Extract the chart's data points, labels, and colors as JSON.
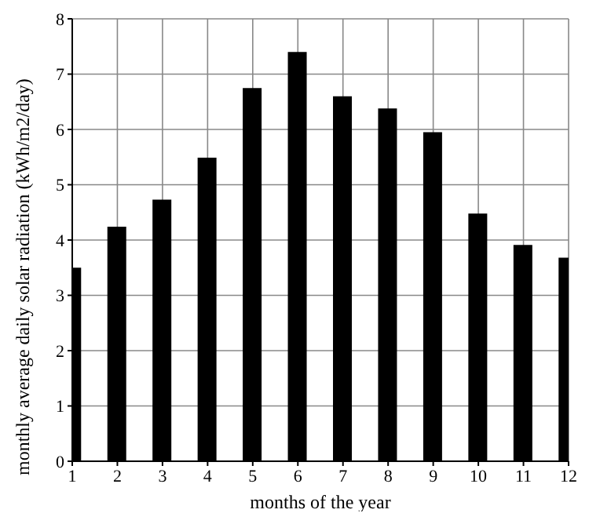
{
  "chart_data": {
    "type": "bar",
    "xlabel": "months of the year",
    "ylabel": "monthly average daily solar radiation (kWh/m2/day)",
    "x": [
      1,
      2,
      3,
      4,
      5,
      6,
      7,
      8,
      9,
      10,
      11,
      12
    ],
    "values": [
      3.5,
      4.24,
      4.73,
      5.49,
      6.75,
      7.4,
      6.6,
      6.38,
      5.95,
      4.48,
      3.91,
      3.68
    ],
    "color": "#000000",
    "xlim": [
      1,
      12
    ],
    "xticks": [
      1,
      2,
      3,
      4,
      5,
      6,
      7,
      8,
      9,
      10,
      11,
      12
    ],
    "ylim": [
      0,
      8
    ],
    "yticks": [
      0,
      1,
      2,
      3,
      4,
      5,
      6,
      7,
      8
    ],
    "grid": true
  }
}
